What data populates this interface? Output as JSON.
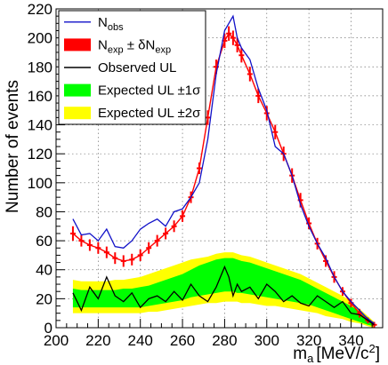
{
  "chart_data": {
    "type": "line",
    "title": "",
    "xlabel": "m",
    "xlabel_sub": "a",
    "xlabel_units": "[MeV/c",
    "xlabel_sup": "2",
    "xlabel_close": "]",
    "ylabel": "Number of events",
    "xlim": [
      200,
      355
    ],
    "ylim": [
      0,
      220
    ],
    "xticks": [
      "200",
      "220",
      "240",
      "260",
      "280",
      "300",
      "320",
      "340"
    ],
    "yticks": [
      "0",
      "20",
      "40",
      "60",
      "80",
      "100",
      "120",
      "140",
      "160",
      "180",
      "200",
      "220"
    ],
    "grid": true,
    "legend_position": "top-left",
    "legend": [
      {
        "key": "obs",
        "main": "N",
        "sub": "obs",
        "after": ""
      },
      {
        "key": "exp",
        "main": "N",
        "sub": "exp",
        "after": " ± δN",
        "sub2": "exp"
      },
      {
        "key": "ul",
        "main": "Observed UL",
        "sub": "",
        "after": ""
      },
      {
        "key": "band1",
        "main": "Expected UL ±1σ",
        "sub": "",
        "after": ""
      },
      {
        "key": "band2",
        "main": "Expected UL ±2σ",
        "sub": "",
        "after": ""
      }
    ],
    "colors": {
      "obs": "#1010c8",
      "exp": "#ff0000",
      "ul": "#000000",
      "band1": "#00ff00",
      "band2": "#ffff00"
    },
    "x": [
      208,
      212,
      216,
      220,
      224,
      228,
      232,
      236,
      240,
      244,
      248,
      252,
      256,
      260,
      264,
      268,
      272,
      276,
      280,
      282,
      284,
      286,
      288,
      292,
      296,
      300,
      304,
      308,
      312,
      316,
      320,
      324,
      328,
      332,
      336,
      340,
      344,
      348,
      351
    ],
    "series": [
      {
        "name": "N_obs",
        "key": "obs",
        "values": [
          75,
          64,
          65,
          60,
          68,
          56,
          55,
          60,
          68,
          72,
          75,
          70,
          80,
          82,
          90,
          100,
          130,
          175,
          205,
          210,
          215,
          200,
          193,
          185,
          165,
          150,
          125,
          120,
          105,
          85,
          70,
          58,
          48,
          35,
          25,
          18,
          12,
          6,
          3
        ]
      },
      {
        "name": "N_exp",
        "key": "exp",
        "values": [
          65,
          60,
          57,
          55,
          52,
          48,
          46,
          47,
          50,
          55,
          60,
          65,
          70,
          77,
          90,
          110,
          145,
          180,
          198,
          203,
          200,
          195,
          188,
          175,
          160,
          148,
          135,
          120,
          105,
          88,
          72,
          58,
          46,
          35,
          25,
          17,
          10,
          5,
          2
        ],
        "error": [
          5,
          4,
          4,
          4,
          4,
          4,
          4,
          4,
          4,
          4,
          4,
          4,
          4,
          4,
          4,
          4,
          5,
          5,
          5,
          5,
          5,
          5,
          5,
          5,
          5,
          5,
          5,
          5,
          5,
          5,
          4,
          4,
          4,
          4,
          3,
          3,
          3,
          2,
          2
        ]
      },
      {
        "name": "Observed UL",
        "key": "ul",
        "values": [
          24,
          12,
          28,
          20,
          35,
          22,
          18,
          24,
          14,
          20,
          22,
          18,
          25,
          19,
          30,
          22,
          18,
          28,
          42,
          35,
          22,
          30,
          25,
          28,
          20,
          30,
          25,
          18,
          22,
          17,
          15,
          22,
          18,
          14,
          18,
          10,
          9,
          5,
          2
        ]
      },
      {
        "name": "Expected UL band",
        "key": "bands",
        "median": [
          20,
          19,
          19,
          19,
          19,
          19,
          19,
          19,
          20,
          21,
          22,
          24,
          26,
          28,
          31,
          33,
          35,
          37,
          38,
          38,
          37,
          37,
          36,
          35,
          33,
          31,
          29,
          28,
          26,
          24,
          22,
          20,
          18,
          16,
          14,
          11,
          8,
          5,
          2
        ],
        "lo1": [
          14,
          14,
          14,
          14,
          14,
          14,
          14,
          14,
          14,
          15,
          16,
          17,
          18,
          19,
          21,
          22,
          23,
          24,
          25,
          25,
          25,
          24,
          24,
          23,
          22,
          21,
          20,
          19,
          18,
          17,
          16,
          14,
          12,
          10,
          8,
          6,
          4,
          2,
          1
        ],
        "hi1": [
          27,
          26,
          26,
          26,
          26,
          26,
          27,
          27,
          28,
          29,
          31,
          33,
          35,
          37,
          40,
          43,
          45,
          47,
          48,
          48,
          48,
          47,
          46,
          45,
          43,
          41,
          39,
          37,
          35,
          33,
          30,
          27,
          24,
          21,
          18,
          15,
          11,
          7,
          3
        ],
        "lo2": [
          10,
          10,
          10,
          10,
          10,
          10,
          10,
          10,
          10,
          11,
          11,
          12,
          13,
          14,
          15,
          16,
          17,
          17,
          18,
          18,
          18,
          18,
          17,
          17,
          16,
          15,
          15,
          14,
          13,
          12,
          11,
          10,
          8,
          7,
          6,
          4,
          3,
          1,
          0
        ],
        "hi2": [
          33,
          32,
          32,
          32,
          32,
          33,
          33,
          34,
          35,
          37,
          39,
          41,
          43,
          45,
          47,
          48,
          49,
          51,
          52,
          52,
          52,
          51,
          50,
          49,
          47,
          45,
          43,
          41,
          39,
          37,
          34,
          31,
          28,
          25,
          22,
          18,
          13,
          8,
          4
        ]
      }
    ]
  }
}
